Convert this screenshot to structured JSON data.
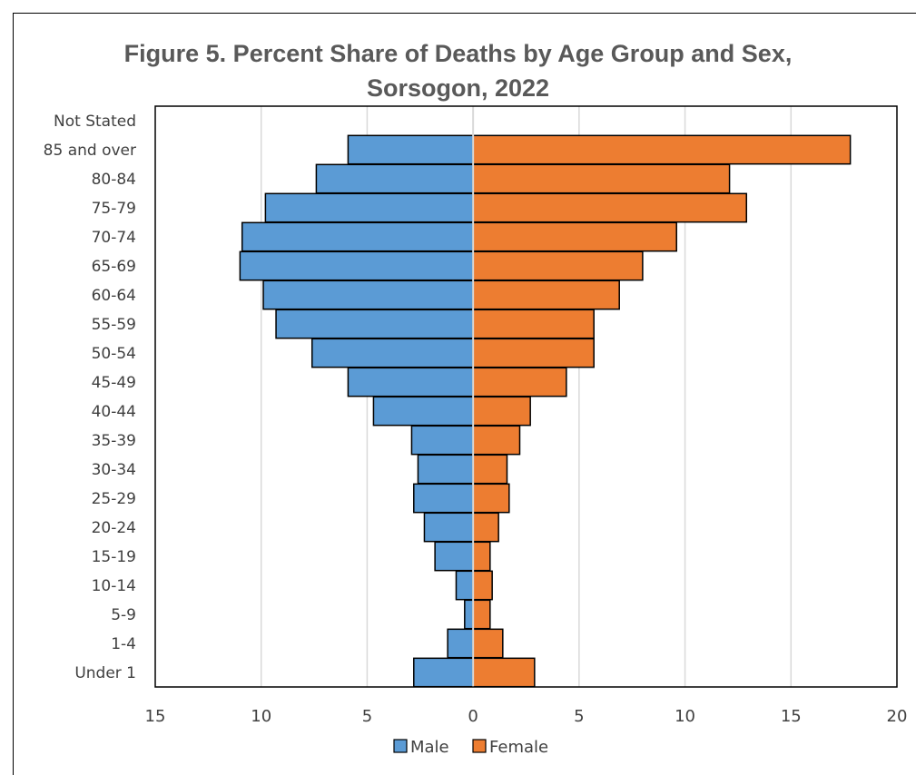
{
  "colors": {
    "male": "#5B9BD5",
    "female": "#ED7D31",
    "grid": "#D9D9D9",
    "axis": "#D9D9D9",
    "plot_border": "#000000"
  },
  "chart_data": {
    "type": "bar",
    "orientation": "horizontal-diverging",
    "title": "Figure 5. Percent Share of Deaths by Age Group and Sex,",
    "subtitle": "Sorsogon, 2022",
    "categories": [
      "Not Stated",
      "85 and over",
      "80-84",
      "75-79",
      "70-74",
      "65-69",
      "60-64",
      "55-59",
      "50-54",
      "45-49",
      "40-44",
      "35-39",
      "30-34",
      "25-29",
      "20-24",
      "15-19",
      "10-14",
      "5-9",
      "1-4",
      "Under 1"
    ],
    "series": [
      {
        "name": "Male",
        "values": [
          0,
          5.9,
          7.4,
          9.8,
          10.9,
          11.0,
          9.9,
          9.3,
          7.6,
          5.9,
          4.7,
          2.9,
          2.6,
          2.8,
          2.3,
          1.8,
          0.8,
          0.4,
          1.2,
          2.8
        ]
      },
      {
        "name": "Female",
        "values": [
          0,
          17.8,
          12.1,
          12.9,
          9.6,
          8.0,
          6.9,
          5.7,
          5.7,
          4.4,
          2.7,
          2.2,
          1.6,
          1.7,
          1.2,
          0.8,
          0.9,
          0.8,
          1.4,
          2.9
        ]
      }
    ],
    "x_ticks": [
      "15",
      "10",
      "5",
      "0",
      "5",
      "10",
      "15",
      "20"
    ],
    "xlim": [
      -15,
      20
    ],
    "grid": true,
    "legend_position": "bottom"
  }
}
